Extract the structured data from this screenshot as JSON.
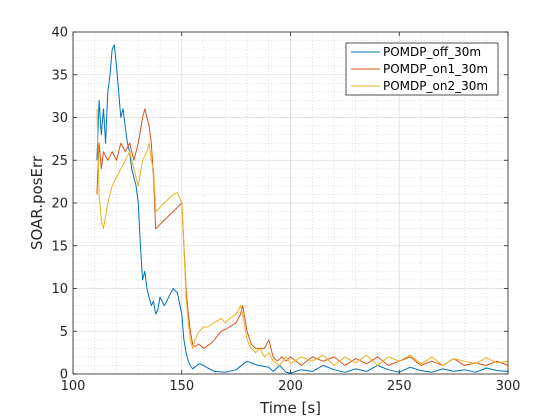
{
  "chart_data": {
    "type": "line",
    "title": "",
    "xlabel": "Time [s]",
    "ylabel": "SOAR.posErr",
    "xlim": [
      100,
      300
    ],
    "ylim": [
      0,
      40
    ],
    "xticks": [
      100,
      150,
      200,
      250,
      300
    ],
    "yticks": [
      0,
      5,
      10,
      15,
      20,
      25,
      30,
      35,
      40
    ],
    "xtick_labels": [
      "100",
      "150",
      "200",
      "250",
      "300"
    ],
    "ytick_labels": [
      "0",
      "5",
      "10",
      "15",
      "20",
      "25",
      "30",
      "35",
      "40"
    ],
    "grid": "major and minor (dotted)",
    "legend_position": "top-right",
    "series": [
      {
        "name": "POMDP_off_30m",
        "color": "#0072BD",
        "x": [
          111,
          112,
          113,
          114,
          115,
          116,
          117,
          118,
          119,
          120,
          121,
          122,
          123,
          124,
          125,
          126,
          127,
          128,
          129,
          130,
          131,
          132,
          133,
          134,
          135,
          136,
          137,
          138,
          139,
          140,
          142,
          144,
          146,
          148,
          150,
          151,
          152,
          153,
          154,
          155,
          156,
          158,
          160,
          162,
          165,
          170,
          175,
          180,
          185,
          190,
          192,
          195,
          198,
          200,
          205,
          210,
          215,
          220,
          225,
          230,
          235,
          240,
          245,
          250,
          255,
          260,
          265,
          270,
          275,
          280,
          285,
          290,
          295,
          300
        ],
        "y": [
          25,
          32,
          28,
          31,
          27,
          33,
          35,
          38,
          38.5,
          36,
          33,
          30,
          31,
          29,
          27,
          26,
          24,
          23,
          22,
          20,
          15,
          11,
          12,
          10,
          9,
          8,
          8.5,
          7,
          7.5,
          9,
          8,
          9,
          10,
          9.5,
          7,
          4,
          2.5,
          1.5,
          1,
          0.6,
          0.8,
          1.2,
          1,
          0.7,
          0.3,
          0.2,
          0.5,
          1.5,
          1,
          0.8,
          0.3,
          1,
          0.2,
          0.1,
          0.5,
          0.3,
          1,
          0.5,
          0.2,
          0.6,
          0.3,
          1,
          0.5,
          0.2,
          0.8,
          0.4,
          0.2,
          0.6,
          0.3,
          0.5,
          0.2,
          0.7,
          0.4,
          0.3
        ]
      },
      {
        "name": "POMDP_on1_30m",
        "color": "#D95319",
        "x": [
          111,
          112,
          113,
          114,
          116,
          118,
          120,
          122,
          124,
          126,
          128,
          130,
          132,
          133,
          134,
          135,
          136,
          137,
          138,
          140,
          142,
          144,
          146,
          148,
          150,
          151,
          152,
          153,
          154,
          155,
          156,
          158,
          160,
          163,
          165,
          168,
          170,
          172,
          175,
          177,
          178,
          180,
          182,
          184,
          186,
          188,
          190,
          192,
          194,
          196,
          198,
          200,
          205,
          210,
          215,
          220,
          225,
          230,
          235,
          240,
          245,
          250,
          255,
          260,
          265,
          270,
          275,
          280,
          285,
          290,
          295,
          300
        ],
        "y": [
          21,
          27,
          24,
          26,
          25,
          26,
          25,
          27,
          26,
          27,
          25,
          27,
          30,
          31,
          30,
          29,
          27,
          23,
          17,
          17.5,
          18,
          18.5,
          19,
          19.5,
          20,
          15,
          10,
          7,
          5,
          3.5,
          3.2,
          3.5,
          3,
          3.5,
          4,
          5,
          5.2,
          5.5,
          6,
          7,
          8,
          5,
          3.5,
          3,
          3,
          3,
          4,
          2,
          1.5,
          2,
          1.5,
          2,
          1,
          2,
          1.5,
          2,
          1,
          1.8,
          1.2,
          2,
          1,
          1.5,
          2,
          1,
          1.5,
          1,
          1.8,
          1,
          1.3,
          1,
          1.5,
          1
        ]
      },
      {
        "name": "POMDP_on2_30m",
        "color": "#EDB120",
        "x": [
          111,
          112,
          113,
          114,
          116,
          118,
          120,
          122,
          124,
          126,
          128,
          130,
          132,
          134,
          135,
          136,
          137,
          138,
          140,
          142,
          144,
          146,
          148,
          150,
          151,
          152,
          153,
          154,
          155,
          156,
          158,
          160,
          162,
          165,
          168,
          170,
          172,
          175,
          177,
          178,
          180,
          182,
          184,
          186,
          188,
          190,
          192,
          195,
          198,
          200,
          205,
          210,
          215,
          220,
          225,
          230,
          235,
          240,
          245,
          250,
          255,
          260,
          265,
          270,
          275,
          280,
          285,
          290,
          295,
          300
        ],
        "y": [
          31,
          21,
          18,
          17,
          20,
          22,
          23,
          24,
          25,
          26,
          24,
          22,
          25,
          26,
          27,
          25,
          24,
          19,
          19.5,
          20,
          20.5,
          21,
          21.2,
          20,
          15,
          9,
          6,
          4,
          3,
          4,
          5,
          5.5,
          5.5,
          6,
          6.5,
          6,
          6.5,
          7,
          8,
          7,
          4,
          3,
          2.5,
          3,
          2,
          2.5,
          1.5,
          1,
          2,
          1.2,
          2,
          1.5,
          2.2,
          1,
          2,
          1.3,
          2.2,
          1,
          2,
          1.5,
          2.2,
          1.2,
          2,
          1,
          1.8,
          1.5,
          1.2,
          1.9,
          1.3,
          1.5
        ]
      }
    ]
  }
}
